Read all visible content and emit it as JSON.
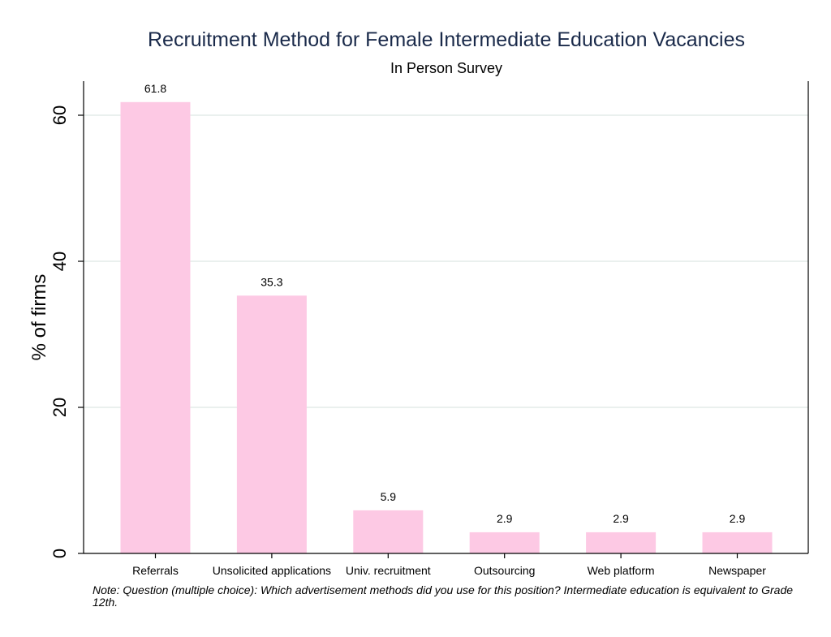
{
  "chart_data": {
    "type": "bar",
    "title": "Recruitment Method for Female Intermediate Education Vacancies",
    "subtitle": "In Person Survey",
    "xlabel": "",
    "ylabel": "% of firms",
    "categories": [
      "Referrals",
      "Unsolicited applications",
      "Univ. recruitment",
      "Outsourcing",
      "Web platform",
      "Newspaper"
    ],
    "values": [
      61.8,
      35.3,
      5.9,
      2.9,
      2.9,
      2.9
    ],
    "value_labels": [
      "61.8",
      "35.3",
      "5.9",
      "2.9",
      "2.9",
      "2.9"
    ],
    "ylim": [
      0,
      65
    ],
    "yticks": [
      0,
      20,
      40,
      60
    ],
    "ytick_labels": [
      "0",
      "20",
      "40",
      "60"
    ],
    "grid": true,
    "bar_color": "#fdc9e4",
    "grid_color": "#e3ece9",
    "title_color": "#1a2a4a"
  },
  "note": "Note: Question (multiple choice): Which advertisement methods did you use for this position? Intermediate education is equivalent to Grade 12th."
}
